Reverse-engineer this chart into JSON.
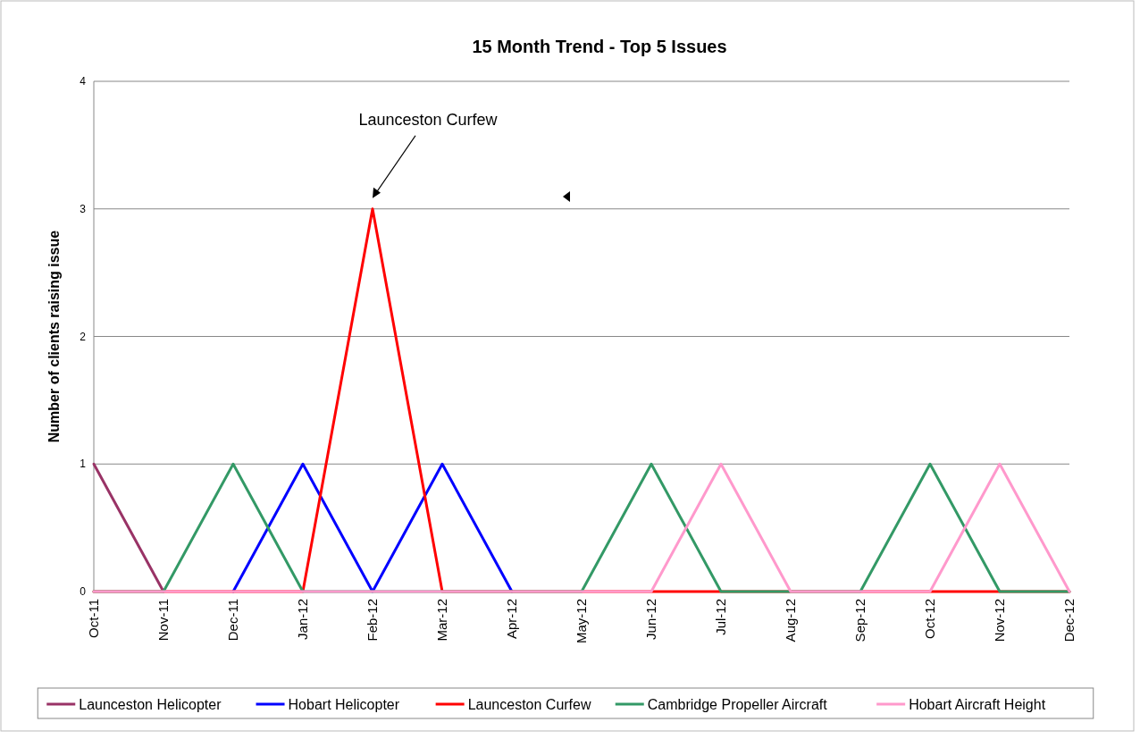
{
  "chart_data": {
    "type": "line",
    "title": "15 Month Trend - Top 5 Issues",
    "ylabel": "Number of clients raising issue",
    "categories": [
      "Oct-11",
      "Nov-11",
      "Dec-11",
      "Jan-12",
      "Feb-12",
      "Mar-12",
      "Apr-12",
      "May-12",
      "Jun-12",
      "Jul-12",
      "Aug-12",
      "Sep-12",
      "Oct-12",
      "Nov-12",
      "Dec-12"
    ],
    "series": [
      {
        "name": "Launceston Helicopter",
        "color": "#993366",
        "values": [
          1,
          0,
          null,
          null,
          null,
          null,
          null,
          null,
          null,
          null,
          null,
          null,
          null,
          null,
          null
        ]
      },
      {
        "name": "Hobart Helicopter",
        "color": "#0000ff",
        "values": [
          null,
          null,
          0,
          1,
          0,
          1,
          0,
          null,
          null,
          null,
          null,
          null,
          null,
          null,
          null
        ]
      },
      {
        "name": "Launceston Curfew",
        "color": "#ff0000",
        "values": [
          0,
          0,
          0,
          0,
          3,
          0,
          0,
          0,
          0,
          0,
          0,
          0,
          0,
          0,
          0
        ]
      },
      {
        "name": "Cambridge Propeller Aircraft",
        "color": "#339966",
        "values": [
          0,
          0,
          1,
          0,
          0,
          0,
          0,
          0,
          1,
          0,
          0,
          0,
          1,
          0,
          0
        ]
      },
      {
        "name": "Hobart Aircraft Height",
        "color": "#ff99cc",
        "values": [
          0,
          0,
          0,
          0,
          0,
          0,
          0,
          0,
          0,
          1,
          0,
          0,
          0,
          1,
          0
        ]
      }
    ],
    "ylim": [
      0,
      4
    ],
    "yticks": [
      0,
      1,
      2,
      3,
      4
    ],
    "grid": "y",
    "legend": "bottom",
    "marker": "none",
    "line_style": "solid",
    "annotations": [
      "Launceston Curfew"
    ]
  }
}
